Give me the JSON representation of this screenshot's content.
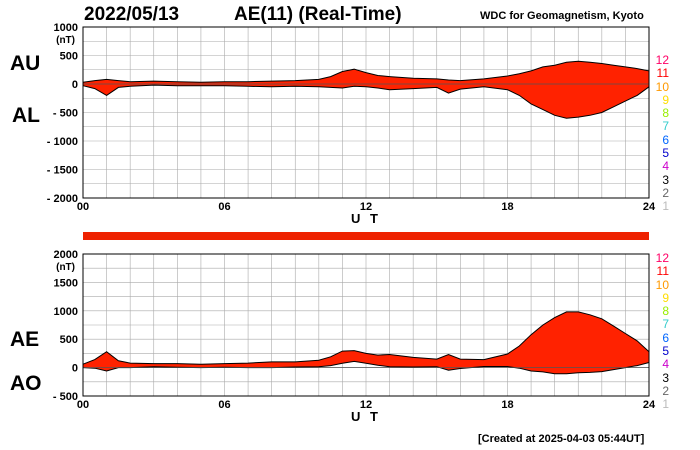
{
  "header": {
    "date": "2022/05/13",
    "title": "AE(11) (Real-Time)",
    "source": "WDC for Geomagnetism, Kyoto"
  },
  "footer": "[Created at 2025-04-03 05:44UT]",
  "colors": {
    "fill": "#ff2200",
    "outline": "#000000",
    "grid": "#aaaaaa",
    "bar": "#ee2200"
  },
  "side_key": {
    "labels": [
      "12",
      "11",
      "10",
      "9",
      "8",
      "7",
      "6",
      "5",
      "4",
      "3",
      "2",
      "1"
    ],
    "colors": [
      "#ff0066",
      "#ff0000",
      "#ff9900",
      "#ffdd00",
      "#99ee00",
      "#33cccc",
      "#0066ff",
      "#0000cc",
      "#cc00cc",
      "#000000",
      "#666666",
      "#bbbbbb"
    ]
  },
  "chart_data": [
    {
      "type": "area",
      "panel": "top",
      "labels": {
        "upper": "AU",
        "lower": "AL"
      },
      "ylabel_unit": "(nT)",
      "xlabel": "U T",
      "xlim": [
        0,
        24
      ],
      "x_ticks": [
        "00",
        "06",
        "12",
        "18",
        "24"
      ],
      "ylim": [
        -2000,
        1000
      ],
      "y_ticks": [
        "1000",
        "500",
        "0",
        "- 500",
        "- 1000",
        "- 1500",
        "- 2000"
      ],
      "grid": true,
      "x": [
        0,
        0.5,
        1,
        1.5,
        2,
        3,
        4,
        5,
        6,
        7,
        8,
        9,
        10,
        10.5,
        11,
        11.5,
        12,
        12.5,
        13,
        14,
        15,
        15.5,
        16,
        17,
        18,
        18.5,
        19,
        19.5,
        20,
        20.5,
        21,
        21.5,
        22,
        22.5,
        23,
        23.5,
        24
      ],
      "series": [
        {
          "name": "AU",
          "values": [
            30,
            60,
            80,
            60,
            40,
            50,
            40,
            30,
            40,
            40,
            50,
            60,
            80,
            130,
            220,
            260,
            200,
            150,
            130,
            100,
            90,
            70,
            60,
            90,
            140,
            180,
            230,
            300,
            330,
            380,
            400,
            380,
            360,
            330,
            300,
            270,
            230
          ]
        },
        {
          "name": "AL",
          "values": [
            -30,
            -80,
            -200,
            -60,
            -40,
            -20,
            -30,
            -30,
            -30,
            -40,
            -50,
            -40,
            -50,
            -60,
            -70,
            -40,
            -50,
            -70,
            -100,
            -80,
            -60,
            -160,
            -90,
            -50,
            -100,
            -200,
            -350,
            -450,
            -550,
            -600,
            -580,
            -550,
            -500,
            -400,
            -300,
            -200,
            -50
          ]
        }
      ]
    },
    {
      "type": "area",
      "panel": "bottom",
      "labels": {
        "upper": "AE",
        "lower": "AO"
      },
      "ylabel_unit": "(nT)",
      "xlabel": "U T",
      "xlim": [
        0,
        24
      ],
      "x_ticks": [
        "00",
        "06",
        "12",
        "18",
        "24"
      ],
      "ylim": [
        -500,
        2000
      ],
      "y_ticks": [
        "2000",
        "1500",
        "1000",
        "500",
        "0",
        "- 500"
      ],
      "grid": true,
      "x": [
        0,
        0.5,
        1,
        1.5,
        2,
        3,
        4,
        5,
        6,
        7,
        8,
        9,
        10,
        10.5,
        11,
        11.5,
        12,
        12.5,
        13,
        14,
        15,
        15.5,
        16,
        17,
        18,
        18.5,
        19,
        19.5,
        20,
        20.5,
        21,
        21.5,
        22,
        22.5,
        23,
        23.5,
        24
      ],
      "series": [
        {
          "name": "AE",
          "values": [
            60,
            140,
            280,
            120,
            80,
            70,
            70,
            60,
            70,
            80,
            100,
            100,
            130,
            190,
            290,
            300,
            250,
            220,
            230,
            180,
            150,
            230,
            150,
            140,
            240,
            380,
            580,
            750,
            880,
            980,
            980,
            930,
            860,
            730,
            600,
            470,
            280
          ]
        },
        {
          "name": "AO",
          "values": [
            0,
            -10,
            -60,
            0,
            0,
            15,
            5,
            0,
            5,
            0,
            0,
            10,
            15,
            35,
            75,
            110,
            75,
            40,
            15,
            10,
            15,
            -45,
            -15,
            20,
            20,
            -10,
            -60,
            -75,
            -110,
            -110,
            -90,
            -85,
            -70,
            -35,
            0,
            35,
            90
          ]
        }
      ]
    }
  ]
}
